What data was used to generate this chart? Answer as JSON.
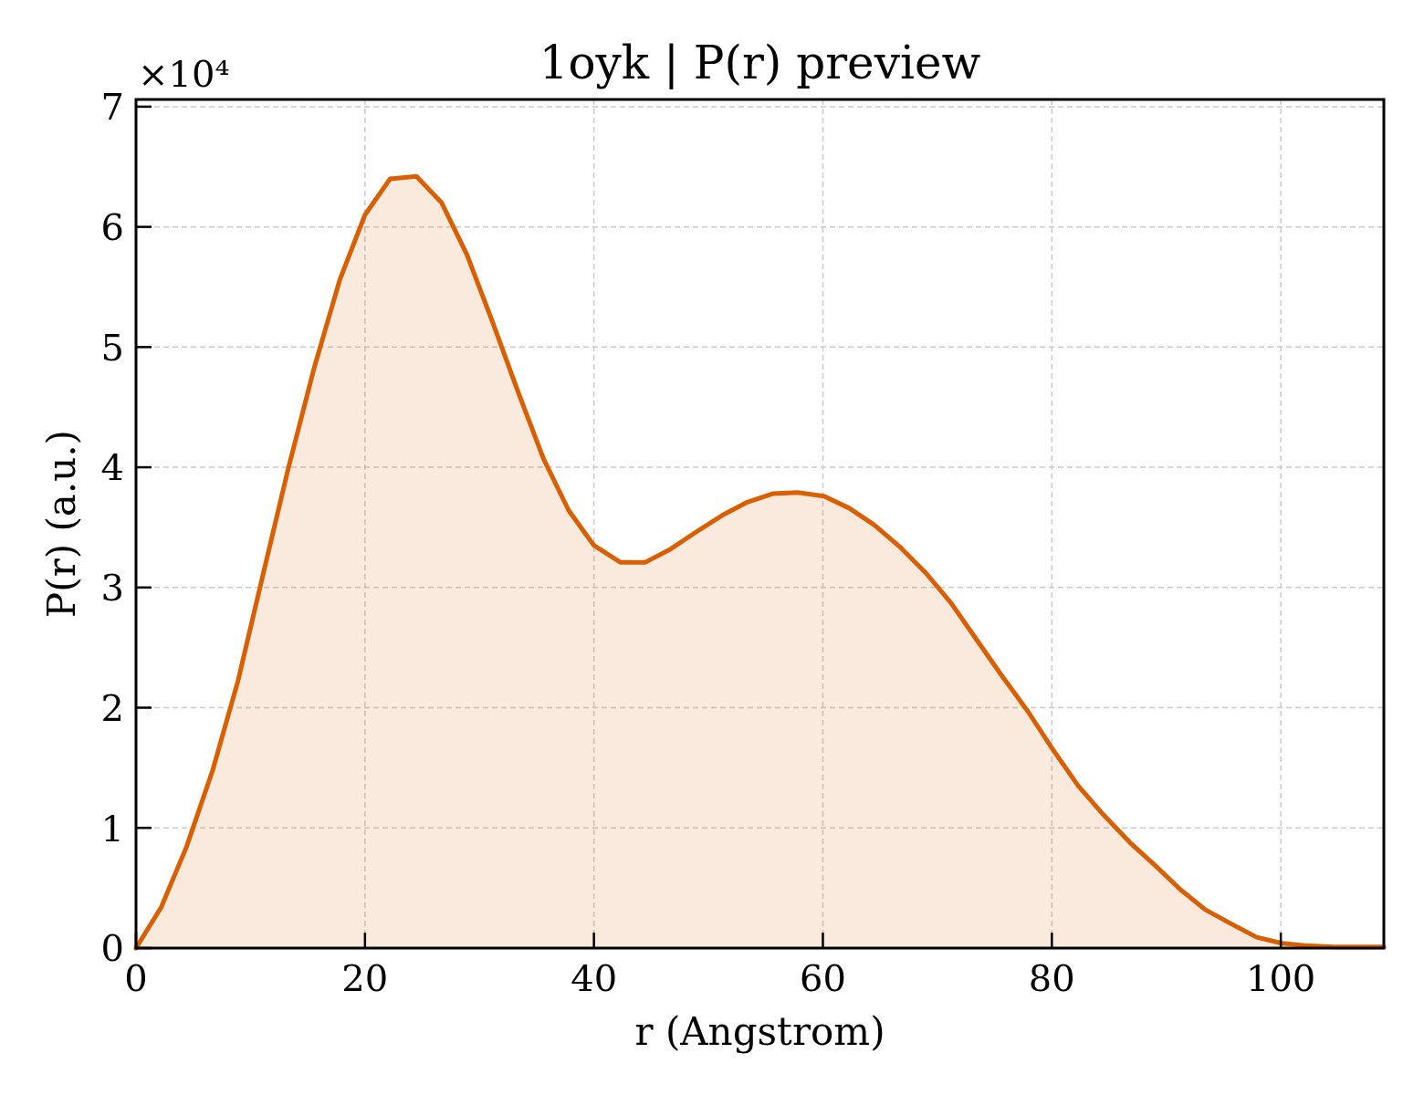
{
  "chart_data": {
    "type": "area",
    "title": "1oyk | P(r) preview",
    "xlabel": "r (Angstrom)",
    "ylabel": "P(r) (a.u.)",
    "annotations": [
      "×10⁴"
    ],
    "x": [
      0,
      2.2,
      4.4,
      6.7,
      8.9,
      11.1,
      13.3,
      15.6,
      17.8,
      20.0,
      22.2,
      24.5,
      26.7,
      28.9,
      31.1,
      33.4,
      35.6,
      37.8,
      40.0,
      42.3,
      44.5,
      46.7,
      48.9,
      51.2,
      53.4,
      55.6,
      57.8,
      60.1,
      62.3,
      64.5,
      66.7,
      69.0,
      71.2,
      73.4,
      75.6,
      77.9,
      80.1,
      82.3,
      84.5,
      86.8,
      89.0,
      91.2,
      93.4,
      95.7,
      97.9,
      100.1,
      102.3,
      104.6,
      106.8,
      109.0
    ],
    "series": [
      {
        "color": "#d95f02",
        "values": [
          0,
          0.34,
          0.84,
          1.48,
          2.22,
          3.11,
          3.99,
          4.84,
          5.56,
          6.1,
          6.4,
          6.42,
          6.2,
          5.77,
          5.22,
          4.62,
          4.07,
          3.64,
          3.35,
          3.21,
          3.21,
          3.32,
          3.46,
          3.6,
          3.71,
          3.78,
          3.79,
          3.76,
          3.66,
          3.52,
          3.34,
          3.12,
          2.87,
          2.57,
          2.27,
          1.97,
          1.65,
          1.35,
          1.11,
          0.88,
          0.69,
          0.49,
          0.32,
          0.2,
          0.09,
          0.04,
          0.02,
          0.01,
          0.01,
          0.01
        ]
      }
    ],
    "xlim": [
      0,
      109
    ],
    "ylim": [
      0,
      7.06
    ],
    "xticks": [
      0,
      20,
      40,
      60,
      80,
      100
    ],
    "yticks": [
      0,
      1,
      2,
      3,
      4,
      5,
      6,
      7
    ],
    "grid": true
  }
}
